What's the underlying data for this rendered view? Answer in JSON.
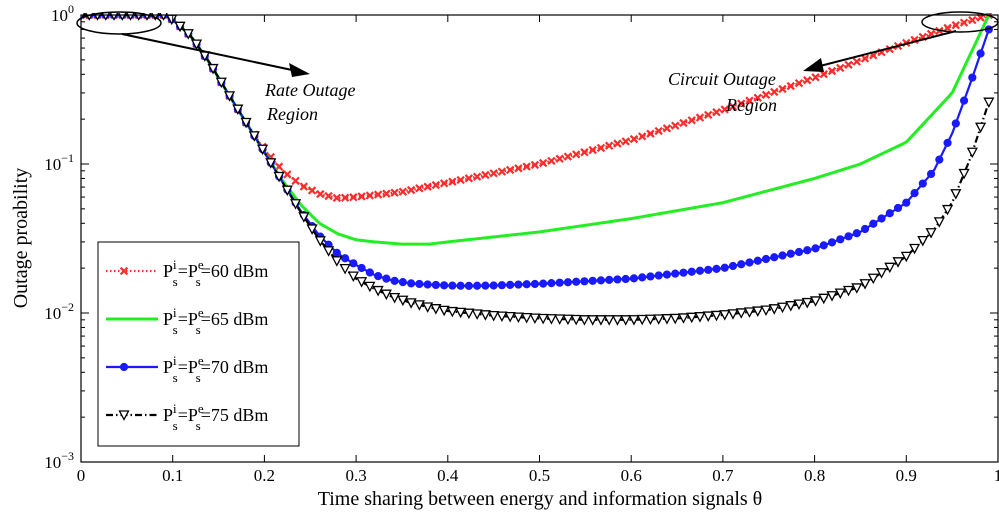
{
  "chart_data": {
    "type": "line",
    "title": "",
    "xlabel": "Time sharing between energy and information signals θ",
    "ylabel": "Outage proability",
    "xlim": [
      0,
      1
    ],
    "ylim": [
      0.001,
      1
    ],
    "yscale": "log",
    "grid": false,
    "legend_placement": "lower-left",
    "x_ticks": [
      "0",
      "0.1",
      "0.2",
      "0.3",
      "0.4",
      "0.5",
      "0.6",
      "0.7",
      "0.8",
      "0.9",
      "1"
    ],
    "y_ticks": [
      {
        "base": "10",
        "exp": "0"
      },
      {
        "base": "10",
        "exp": "−1"
      },
      {
        "base": "10",
        "exp": "−2"
      },
      {
        "base": "10",
        "exp": "−3"
      }
    ],
    "annotations": [
      {
        "text_lines": [
          "Rate Outage",
          "Region"
        ],
        "ellipse_center": [
          0.045,
          1.0
        ]
      },
      {
        "text_lines": [
          "Circuit Outage",
          "Region"
        ],
        "ellipse_center": [
          0.975,
          1.0
        ]
      }
    ],
    "series": [
      {
        "label": {
          "p": "P",
          "i": "i",
          "s1": "s",
          "eq1": "=P",
          "e": "e",
          "s2": "s",
          "rest": "=60 dBm"
        },
        "color": "#ff2a2a",
        "marker": "x",
        "linestyle": "dotted",
        "x": [
          0,
          0.09,
          0.1,
          0.12,
          0.14,
          0.16,
          0.18,
          0.2,
          0.22,
          0.24,
          0.26,
          0.28,
          0.3,
          0.35,
          0.4,
          0.5,
          0.6,
          0.7,
          0.8,
          0.9,
          0.95,
          0.99
        ],
        "y": [
          1,
          1,
          0.93,
          0.72,
          0.48,
          0.3,
          0.19,
          0.125,
          0.09,
          0.072,
          0.063,
          0.059,
          0.06,
          0.065,
          0.075,
          0.1,
          0.145,
          0.23,
          0.38,
          0.65,
          0.84,
          1
        ]
      },
      {
        "label": {
          "p": "P",
          "i": "i",
          "s1": "s",
          "eq1": "=P",
          "e": "e",
          "s2": "s",
          "rest": "=65 dBm"
        },
        "color": "#22ee22",
        "marker": "none",
        "linestyle": "solid",
        "x": [
          0,
          0.09,
          0.1,
          0.12,
          0.14,
          0.16,
          0.18,
          0.2,
          0.22,
          0.24,
          0.26,
          0.28,
          0.3,
          0.32,
          0.35,
          0.38,
          0.4,
          0.5,
          0.6,
          0.7,
          0.8,
          0.85,
          0.9,
          0.95,
          0.99
        ],
        "y": [
          1,
          1,
          0.93,
          0.72,
          0.48,
          0.3,
          0.19,
          0.12,
          0.077,
          0.053,
          0.04,
          0.034,
          0.031,
          0.03,
          0.029,
          0.029,
          0.03,
          0.035,
          0.043,
          0.055,
          0.08,
          0.1,
          0.14,
          0.3,
          1
        ]
      },
      {
        "label": {
          "p": "P",
          "i": "i",
          "s1": "s",
          "eq1": "=P",
          "e": "e",
          "s2": "s",
          "rest": "=70 dBm"
        },
        "color": "#1a1aff",
        "marker": "circle",
        "linestyle": "solid",
        "x": [
          0,
          0.09,
          0.1,
          0.12,
          0.14,
          0.16,
          0.18,
          0.2,
          0.22,
          0.24,
          0.26,
          0.28,
          0.3,
          0.32,
          0.34,
          0.36,
          0.38,
          0.4,
          0.42,
          0.45,
          0.5,
          0.6,
          0.7,
          0.8,
          0.85,
          0.9,
          0.93,
          0.95,
          0.97,
          0.99
        ],
        "y": [
          1,
          1,
          0.93,
          0.72,
          0.48,
          0.3,
          0.19,
          0.12,
          0.075,
          0.048,
          0.033,
          0.025,
          0.021,
          0.018,
          0.0165,
          0.0158,
          0.0155,
          0.0153,
          0.0152,
          0.0153,
          0.0157,
          0.017,
          0.02,
          0.027,
          0.035,
          0.055,
          0.09,
          0.16,
          0.35,
          0.8
        ]
      },
      {
        "label": {
          "p": "P",
          "i": "i",
          "s1": "s",
          "eq1": "=P",
          "e": "e",
          "s2": "s",
          "rest": "=75 dBm"
        },
        "color": "#000000",
        "marker": "triangle-down",
        "linestyle": "dashdot",
        "x": [
          0,
          0.09,
          0.1,
          0.12,
          0.14,
          0.16,
          0.18,
          0.2,
          0.22,
          0.24,
          0.26,
          0.28,
          0.3,
          0.32,
          0.34,
          0.36,
          0.38,
          0.4,
          0.45,
          0.5,
          0.55,
          0.6,
          0.65,
          0.7,
          0.75,
          0.8,
          0.85,
          0.9,
          0.93,
          0.95,
          0.97,
          0.99
        ],
        "y": [
          1,
          1,
          0.93,
          0.72,
          0.48,
          0.3,
          0.19,
          0.12,
          0.075,
          0.047,
          0.031,
          0.022,
          0.017,
          0.0145,
          0.0128,
          0.0117,
          0.0109,
          0.0103,
          0.0096,
          0.0092,
          0.009,
          0.009,
          0.0092,
          0.0097,
          0.0105,
          0.012,
          0.015,
          0.024,
          0.036,
          0.055,
          0.11,
          0.26
        ]
      }
    ]
  }
}
